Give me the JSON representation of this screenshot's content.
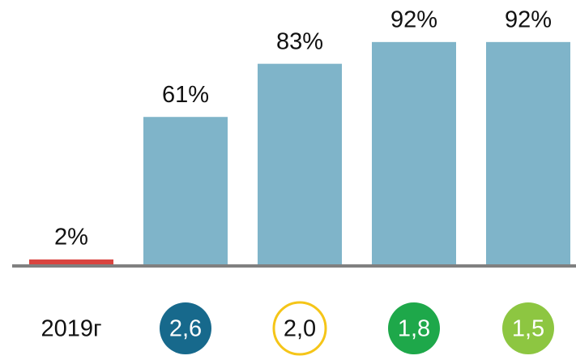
{
  "chart_data": {
    "type": "bar",
    "categories": [
      "2019г",
      "2,6",
      "2,0",
      "1,8",
      "1,5"
    ],
    "values": [
      2,
      61,
      83,
      92,
      92
    ],
    "value_labels": [
      "2%",
      "61%",
      "83%",
      "92%",
      "92%"
    ],
    "colors": [
      "#d9443f",
      "#7fb4c9",
      "#7fb4c9",
      "#7fb4c9",
      "#7fb4c9"
    ],
    "ylim": [
      0,
      100
    ]
  }
}
